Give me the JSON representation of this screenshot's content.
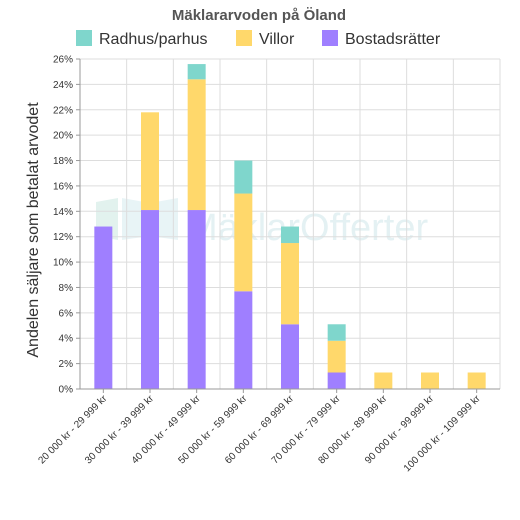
{
  "chart_data": {
    "type": "bar",
    "stacked": true,
    "title": "Mäklararvoden på Öland",
    "ylabel": "Andelen säljare som betalat arvodet",
    "xlabel": "",
    "ylim": [
      0,
      26
    ],
    "y_ticks": [
      "0%",
      "2%",
      "4%",
      "6%",
      "8%",
      "10%",
      "12%",
      "14%",
      "16%",
      "18%",
      "20%",
      "22%",
      "24%",
      "26%"
    ],
    "grid": true,
    "legend_position": "top",
    "categories": [
      "20 000 kr - 29 999 kr",
      "30 000 kr - 39 999 kr",
      "40 000 kr - 49 999 kr",
      "50 000 kr - 59 999 kr",
      "60 000 kr - 69 999 kr",
      "70 000 kr - 79 999 kr",
      "80 000 kr - 89 999 kr",
      "90 000 kr - 99 999 kr",
      "100 000 kr - 109 999 kr"
    ],
    "series": [
      {
        "name": "Bostadsrätter",
        "color": "#9f7fff",
        "values": [
          12.8,
          14.1,
          14.1,
          7.7,
          5.1,
          1.3,
          0,
          0,
          0
        ]
      },
      {
        "name": "Villor",
        "color": "#ffd86b",
        "values": [
          0,
          7.7,
          10.3,
          7.7,
          6.4,
          2.5,
          1.3,
          1.3,
          1.3
        ]
      },
      {
        "name": "Radhus/parhus",
        "color": "#7fd6cc",
        "values": [
          0,
          0,
          1.2,
          2.6,
          1.3,
          1.3,
          0,
          0,
          0
        ]
      }
    ],
    "legend_order": [
      "Radhus/parhus",
      "Villor",
      "Bostadsrätter"
    ],
    "watermark": "MäklarOfferter"
  }
}
